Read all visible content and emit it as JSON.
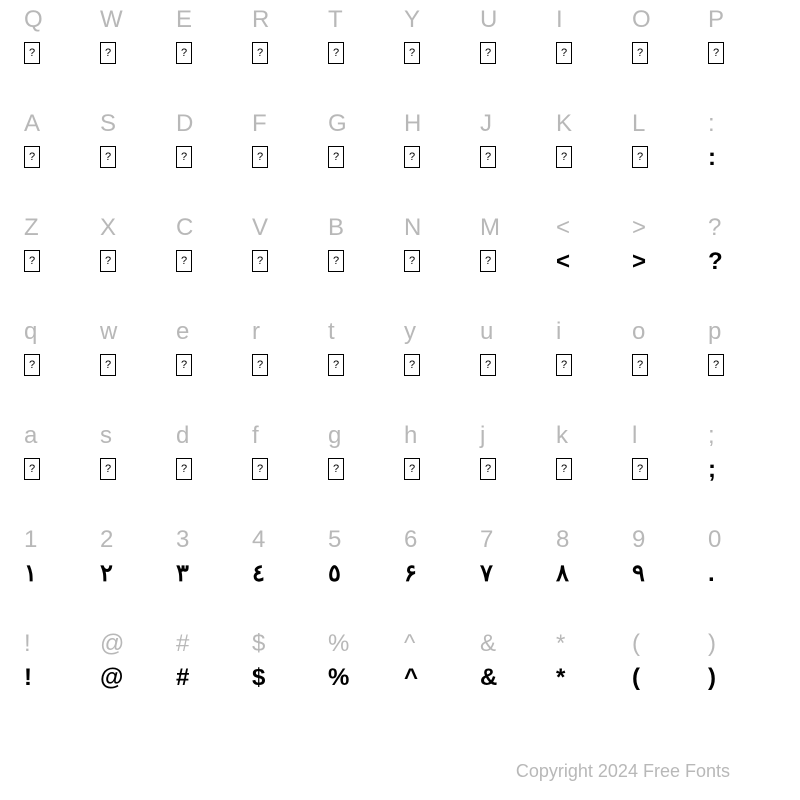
{
  "rows": [
    {
      "labels": [
        "Q",
        "W",
        "E",
        "R",
        "T",
        "Y",
        "U",
        "I",
        "O",
        "P"
      ],
      "glyphs": [
        null,
        null,
        null,
        null,
        null,
        null,
        null,
        null,
        null,
        null
      ]
    },
    {
      "labels": [
        "A",
        "S",
        "D",
        "F",
        "G",
        "H",
        "J",
        "K",
        "L",
        ":"
      ],
      "glyphs": [
        null,
        null,
        null,
        null,
        null,
        null,
        null,
        null,
        null,
        ":"
      ]
    },
    {
      "labels": [
        "Z",
        "X",
        "C",
        "V",
        "B",
        "N",
        "M",
        "<",
        ">",
        "?"
      ],
      "glyphs": [
        null,
        null,
        null,
        null,
        null,
        null,
        null,
        "<",
        ">",
        "?"
      ]
    },
    {
      "labels": [
        "q",
        "w",
        "e",
        "r",
        "t",
        "y",
        "u",
        "i",
        "o",
        "p"
      ],
      "glyphs": [
        null,
        null,
        null,
        null,
        null,
        null,
        null,
        null,
        null,
        null
      ]
    },
    {
      "labels": [
        "a",
        "s",
        "d",
        "f",
        "g",
        "h",
        "j",
        "k",
        "l",
        ";"
      ],
      "glyphs": [
        null,
        null,
        null,
        null,
        null,
        null,
        null,
        null,
        null,
        ";"
      ]
    },
    {
      "labels": [
        "1",
        "2",
        "3",
        "4",
        "5",
        "6",
        "7",
        "8",
        "9",
        "0"
      ],
      "glyphs": [
        "۱",
        "۲",
        "۳",
        "٤",
        "٥",
        "۶",
        "۷",
        "۸",
        "۹",
        "."
      ]
    },
    {
      "labels": [
        "!",
        "@",
        "#",
        "$",
        "%",
        "^",
        "&",
        "*",
        "(",
        ")"
      ],
      "glyphs": [
        "!",
        "@",
        "#",
        "$",
        "%",
        "^",
        "&",
        "*",
        "(",
        ")"
      ]
    }
  ],
  "footer_text": "Copyright 2024 Free Fonts",
  "colors": {
    "label": "#b8b8b8",
    "glyph": "#000000",
    "background": "#ffffff"
  },
  "typography": {
    "label_fontsize": 24,
    "glyph_fontsize": 24,
    "glyph_weight": 900,
    "footer_fontsize": 18
  }
}
